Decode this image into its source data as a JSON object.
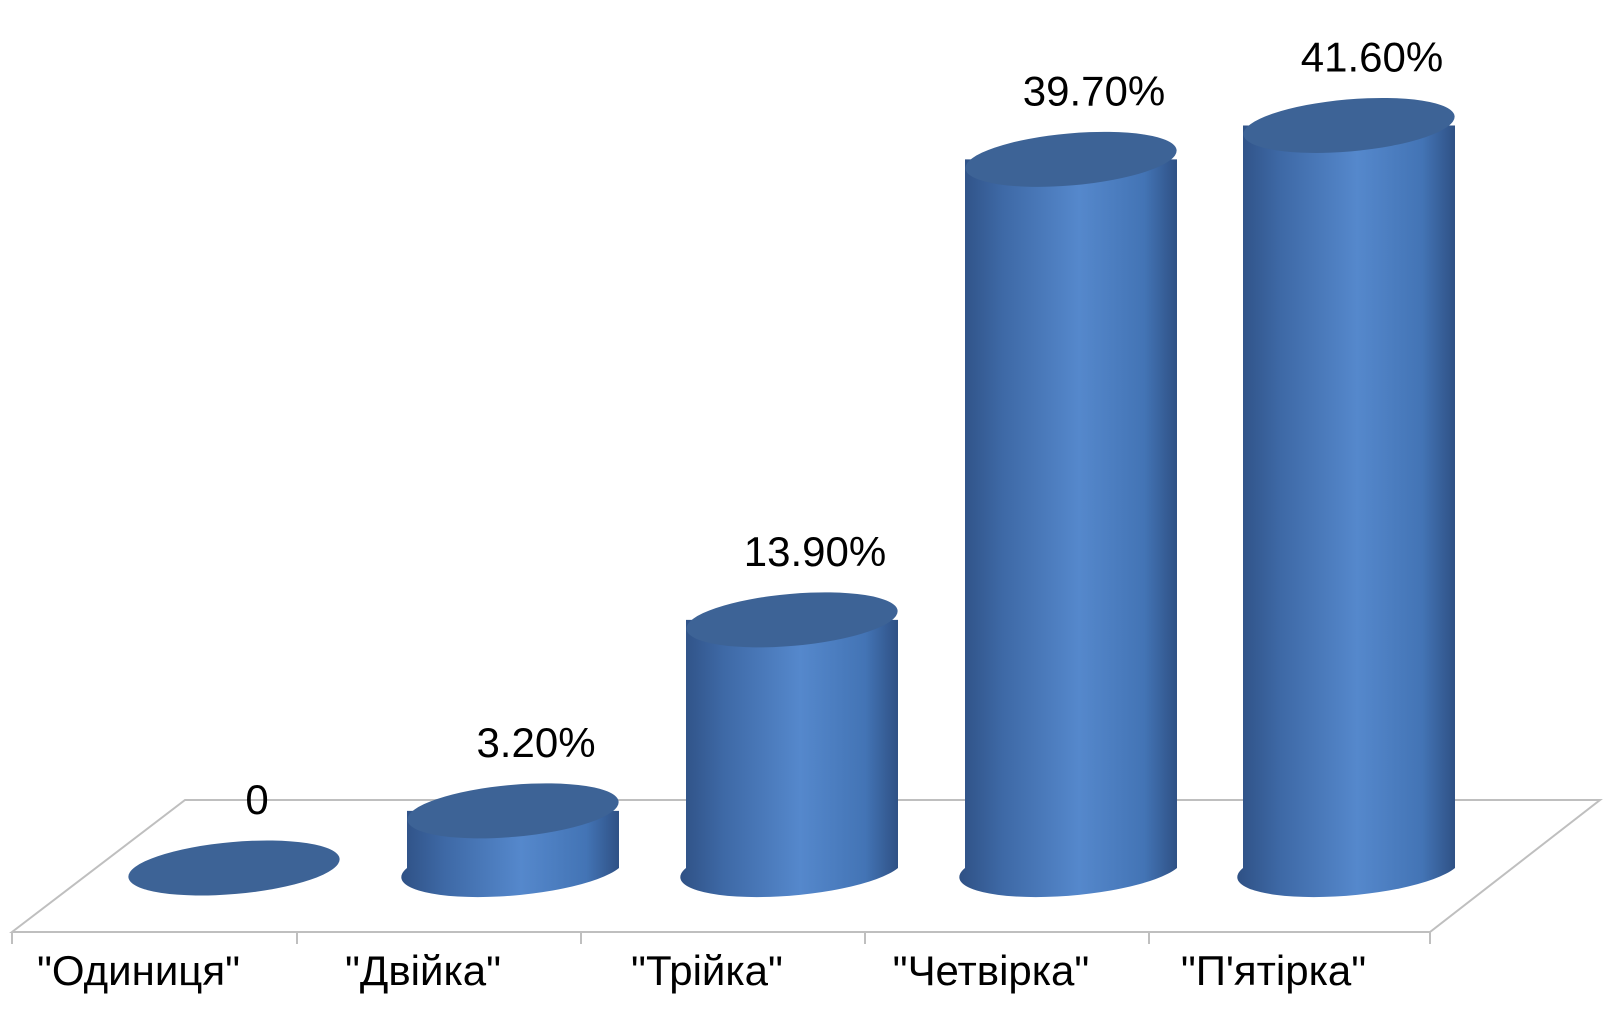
{
  "chart_data": {
    "type": "bar",
    "style": "3d-cylinder",
    "categories": [
      "\"Одиниця\"",
      "\"Двійка\"",
      "\"Трійка\"",
      "\"Четвірка\"",
      "\"П'ятірка\""
    ],
    "values": [
      0,
      3.2,
      13.9,
      39.7,
      41.6
    ],
    "value_labels": [
      "0",
      "3.20%",
      "13.90%",
      "39.70%",
      "41.60%"
    ],
    "unit": "%",
    "title": "",
    "xlabel": "",
    "ylabel": "",
    "ylim": [
      0,
      45
    ],
    "grid": false,
    "legend": "none",
    "colors": {
      "bar_top": "#3D6396",
      "bar_body_dark": "#2F5185",
      "bar_body_light": "#5588CC",
      "floor_line": "#BFBFBF"
    }
  }
}
